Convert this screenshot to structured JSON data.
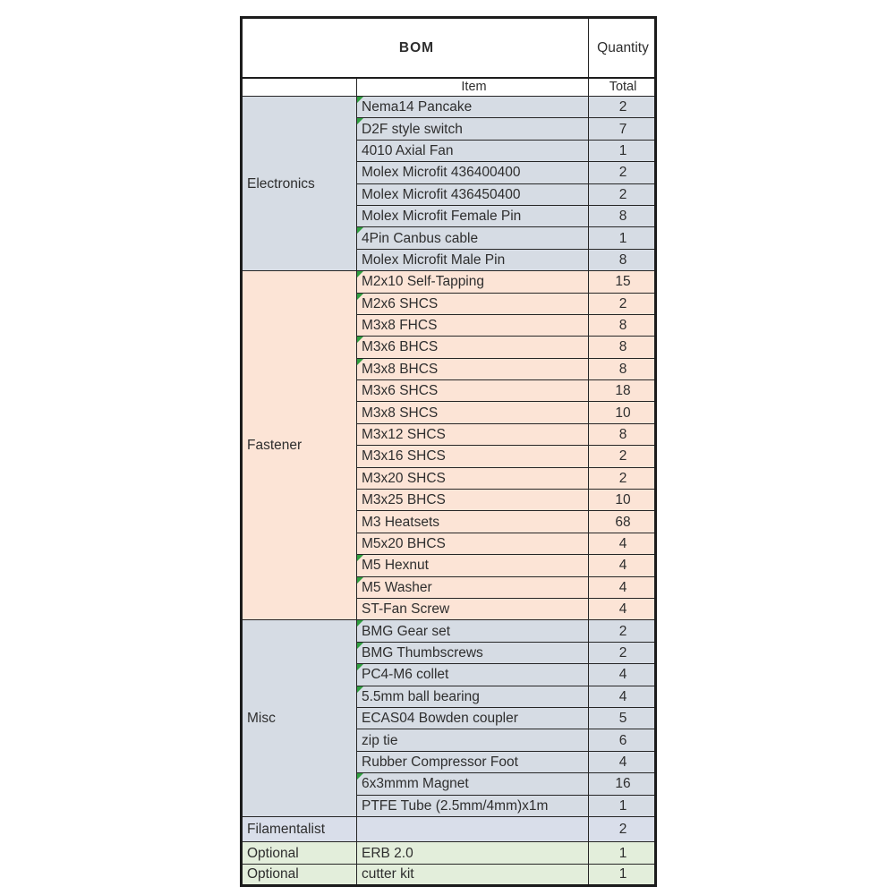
{
  "header": {
    "title": "BOM",
    "quantity_label": "Quantity",
    "item_label": "Item",
    "total_label": "Total"
  },
  "colors": {
    "electronics_bg": "#d6dce4",
    "fastener_bg": "#fce4d6",
    "misc_bg": "#d6dce4",
    "filamentalist_bg": "#d9deea",
    "optional_bg": "#e3eedb",
    "marker_green": "#2f9e3f",
    "border": "#262626",
    "text": "#2e2e2e"
  },
  "sections": [
    {
      "label": "Electronics",
      "color": "#d6dce4",
      "rows": [
        {
          "item": "Nema14 Pancake",
          "total": "2",
          "marker": true
        },
        {
          "item": "D2F style switch",
          "total": "7",
          "marker": true
        },
        {
          "item": "4010 Axial Fan",
          "total": "1",
          "marker": false
        },
        {
          "item": "Molex Microfit 436400400",
          "total": "2",
          "marker": false
        },
        {
          "item": "Molex Microfit 436450400",
          "total": "2",
          "marker": false
        },
        {
          "item": "Molex Microfit Female Pin",
          "total": "8",
          "marker": false
        },
        {
          "item": "4Pin Canbus cable",
          "total": "1",
          "marker": true
        },
        {
          "item": "Molex Microfit Male Pin",
          "total": "8",
          "marker": false
        }
      ]
    },
    {
      "label": "Fastener",
      "color": "#fce4d6",
      "rows": [
        {
          "item": "M2x10 Self-Tapping",
          "total": "15",
          "marker": true
        },
        {
          "item": "M2x6 SHCS",
          "total": "2",
          "marker": true
        },
        {
          "item": "M3x8 FHCS",
          "total": "8",
          "marker": false
        },
        {
          "item": "M3x6 BHCS",
          "total": "8",
          "marker": true
        },
        {
          "item": "M3x8 BHCS",
          "total": "8",
          "marker": true
        },
        {
          "item": "M3x6 SHCS",
          "total": "18",
          "marker": false
        },
        {
          "item": "M3x8 SHCS",
          "total": "10",
          "marker": false
        },
        {
          "item": "M3x12 SHCS",
          "total": "8",
          "marker": false
        },
        {
          "item": "M3x16 SHCS",
          "total": "2",
          "marker": false
        },
        {
          "item": "M3x20 SHCS",
          "total": "2",
          "marker": false
        },
        {
          "item": "M3x25 BHCS",
          "total": "10",
          "marker": false
        },
        {
          "item": "M3 Heatsets",
          "total": "68",
          "marker": false
        },
        {
          "item": "M5x20 BHCS",
          "total": "4",
          "marker": false
        },
        {
          "item": "M5 Hexnut",
          "total": "4",
          "marker": true
        },
        {
          "item": "M5 Washer",
          "total": "4",
          "marker": true
        },
        {
          "item": "ST-Fan Screw",
          "total": "4",
          "marker": false
        }
      ]
    },
    {
      "label": "Misc",
      "color": "#d6dce4",
      "rows": [
        {
          "item": "BMG Gear set",
          "total": "2",
          "marker": true
        },
        {
          "item": "BMG Thumbscrews",
          "total": "2",
          "marker": true
        },
        {
          "item": "PC4-M6 collet",
          "total": "4",
          "marker": true
        },
        {
          "item": "5.5mm ball bearing",
          "total": "4",
          "marker": true
        },
        {
          "item": "ECAS04 Bowden coupler",
          "total": "5",
          "marker": false
        },
        {
          "item": "zip tie",
          "total": "6",
          "marker": false
        },
        {
          "item": "Rubber Compressor Foot",
          "total": "4",
          "marker": false
        },
        {
          "item": "6x3mmm Magnet",
          "total": "16",
          "marker": true
        },
        {
          "item": "PTFE Tube (2.5mm/4mm)x1m",
          "total": "1",
          "marker": false
        }
      ]
    },
    {
      "label": "Filamentalist",
      "color": "#d9deea",
      "rows": [
        {
          "item": "",
          "total": "2",
          "marker": false
        }
      ]
    },
    {
      "label": "Optional",
      "color": "#e3eedb",
      "rows": [
        {
          "item": "ERB 2.0",
          "total": "1",
          "marker": false
        }
      ]
    },
    {
      "label": "Optional",
      "color": "#e3eedb",
      "rows": [
        {
          "item": "cutter kit",
          "total": "1",
          "marker": false
        }
      ]
    }
  ]
}
